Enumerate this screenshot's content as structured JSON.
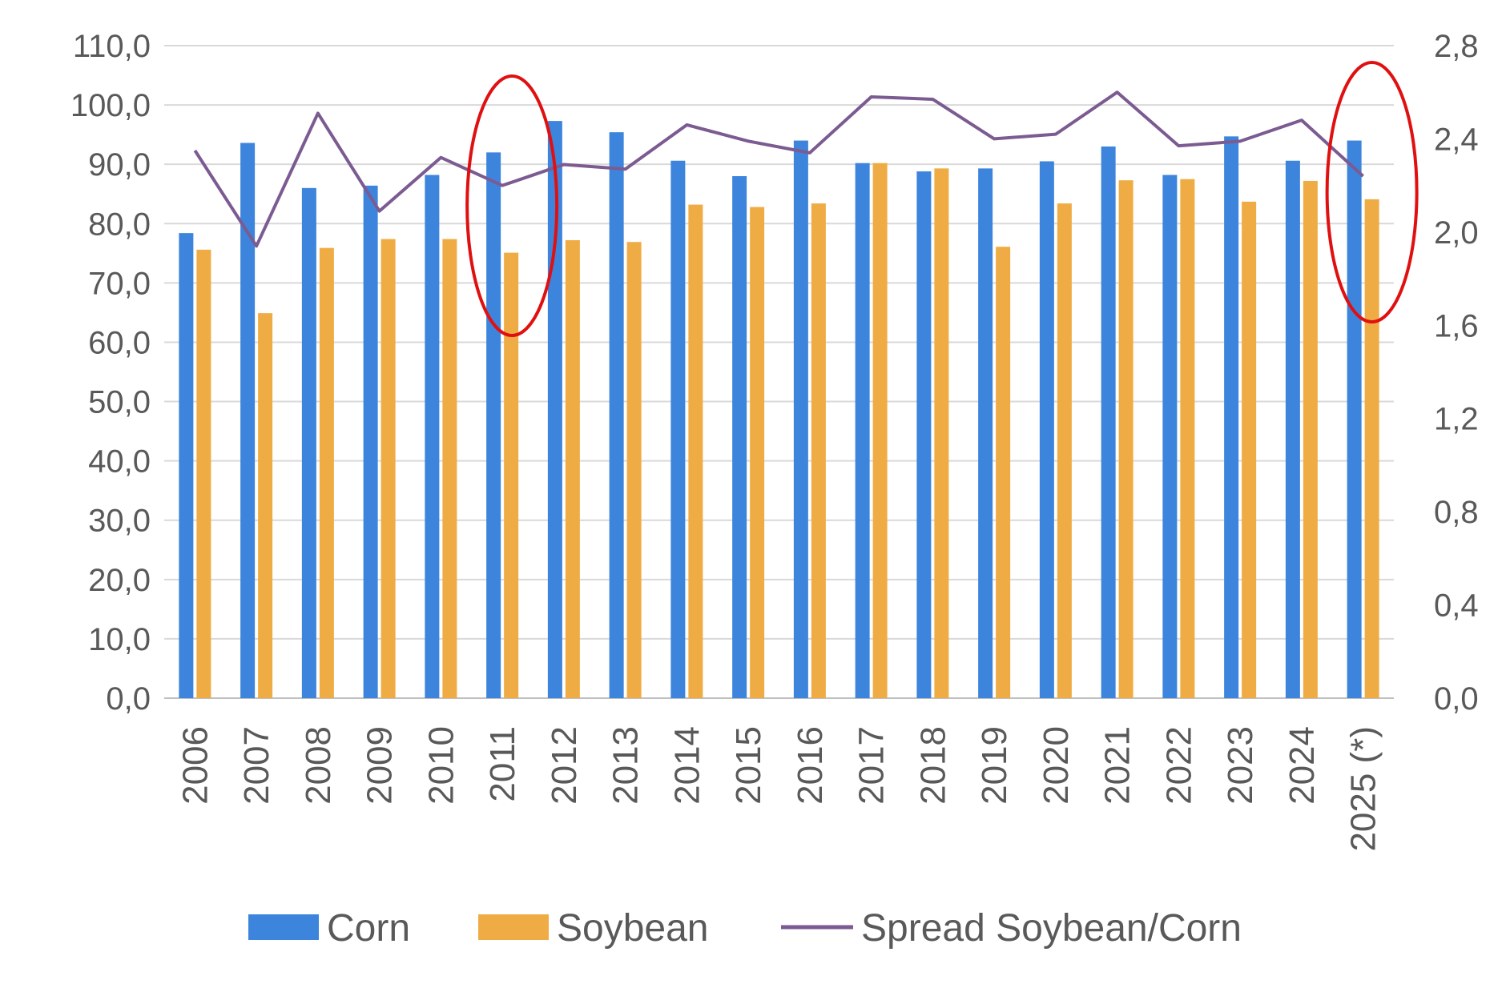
{
  "chart_data": {
    "type": "bar",
    "categories": [
      "2006",
      "2007",
      "2008",
      "2009",
      "2010",
      "2011",
      "2012",
      "2013",
      "2014",
      "2015",
      "2016",
      "2017",
      "2018",
      "2019",
      "2020",
      "2021",
      "2022",
      "2023",
      "2024",
      "2025 (*)"
    ],
    "series": [
      {
        "name": "Corn",
        "type": "bar",
        "axis": "left",
        "color": "#3d85dc",
        "values": [
          78.4,
          93.6,
          86.0,
          86.4,
          88.2,
          92.0,
          97.3,
          95.4,
          90.6,
          88.0,
          94.0,
          90.2,
          88.8,
          89.3,
          90.5,
          93.0,
          88.2,
          94.7,
          90.6,
          94.0
        ]
      },
      {
        "name": "Soybean",
        "type": "bar",
        "axis": "left",
        "color": "#f0ac44",
        "values": [
          75.6,
          64.9,
          75.9,
          77.4,
          77.4,
          75.1,
          77.2,
          76.9,
          83.2,
          82.8,
          83.4,
          90.2,
          89.3,
          76.1,
          83.4,
          87.3,
          87.5,
          83.7,
          87.2,
          84.1
        ]
      },
      {
        "name": "Spread Soybean/Corn",
        "type": "line",
        "axis": "right",
        "color": "#7b5b91",
        "values": [
          2.35,
          1.94,
          2.51,
          2.09,
          2.32,
          2.2,
          2.29,
          2.27,
          2.46,
          2.39,
          2.34,
          2.58,
          2.57,
          2.4,
          2.42,
          2.6,
          2.37,
          2.39,
          2.48,
          2.24
        ]
      }
    ],
    "y_left": {
      "min": 0,
      "max": 110,
      "ticks": [
        "0,0",
        "10,0",
        "20,0",
        "30,0",
        "40,0",
        "50,0",
        "60,0",
        "70,0",
        "80,0",
        "90,0",
        "100,0",
        "110,0"
      ]
    },
    "y_right": {
      "min": 0,
      "max": 2.8,
      "ticks": [
        "0,0",
        "0,4",
        "0,8",
        "1,2",
        "1,6",
        "2,0",
        "2,4",
        "2,8"
      ]
    },
    "grid": true,
    "legend": "bottom",
    "annotations": [
      {
        "type": "ellipse",
        "category": "2011",
        "color": "#e01010"
      },
      {
        "type": "ellipse",
        "category": "2025 (*)",
        "color": "#e01010"
      }
    ]
  }
}
